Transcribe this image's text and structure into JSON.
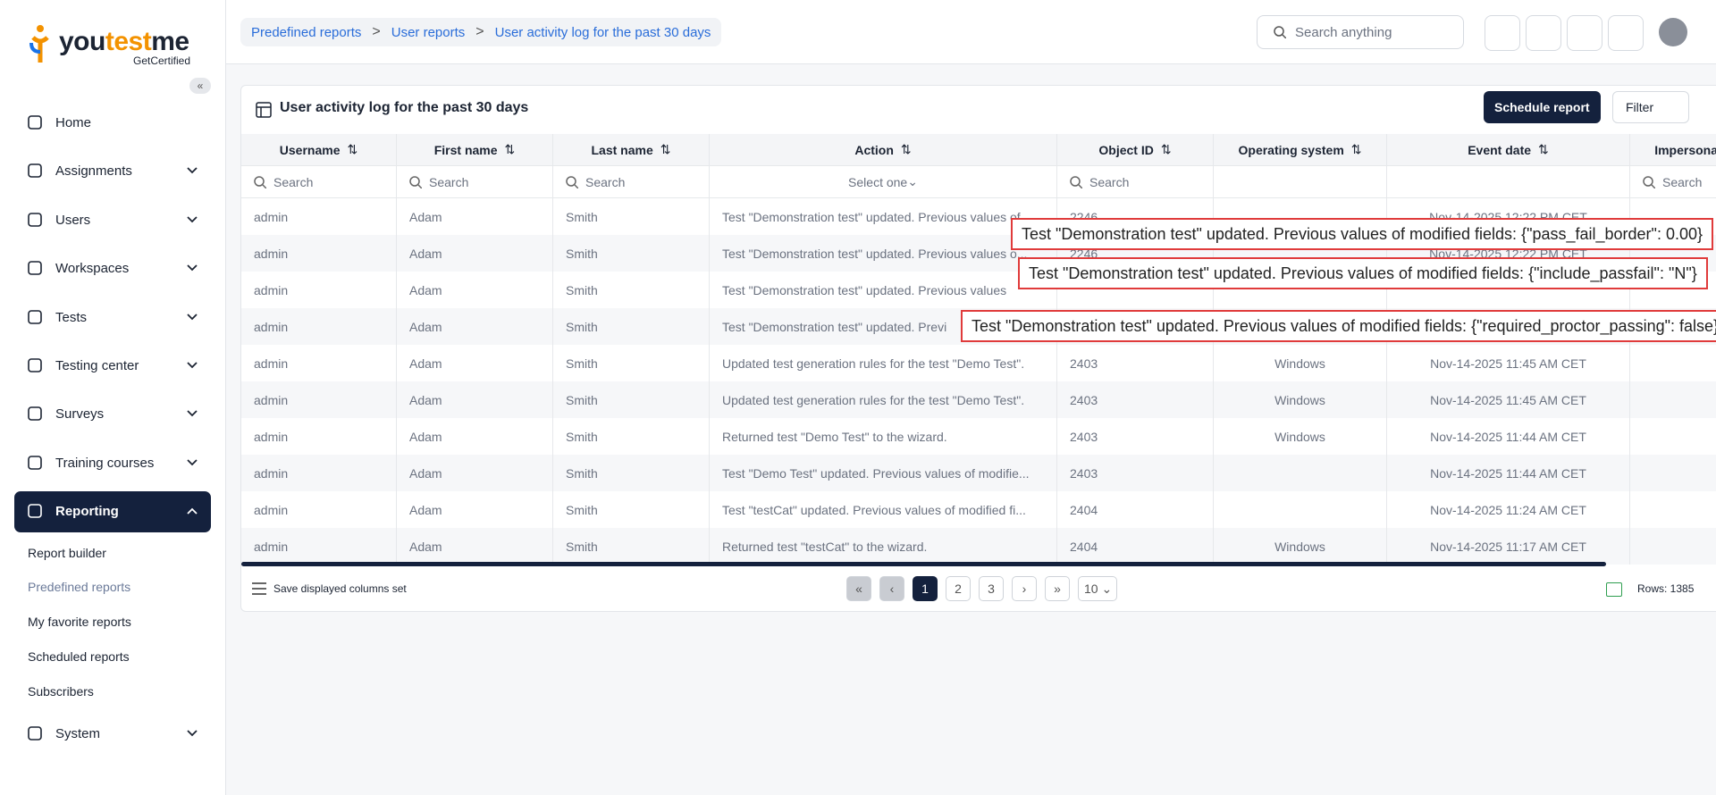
{
  "sidebar": {
    "logo": [
      "you",
      "test",
      "me"
    ],
    "logo_sub": "GetCertified",
    "nav": [
      "Home",
      "Assignments",
      "Users",
      "Workspaces",
      "Tests",
      "Testing center",
      "Surveys",
      "Training courses",
      "Reporting"
    ],
    "reporting_items": [
      "Report builder",
      "Predefined reports",
      "My favorite reports",
      "Scheduled reports",
      "Subscribers"
    ],
    "system": "System"
  },
  "header": {
    "breadcrumbs": [
      "Predefined reports",
      "User reports",
      "User activity log for the past 30 days"
    ],
    "search_placeholder": "Search anything"
  },
  "card": {
    "title": "User activity log for the past 30 days",
    "schedule_button": "Schedule report",
    "filter_button": "Filter"
  },
  "table": {
    "columns": [
      "Username",
      "First name",
      "Last name",
      "Action",
      "Object ID",
      "Operating system",
      "Event date",
      "Impersona"
    ],
    "filters": [
      "Search",
      "Search",
      "Search",
      "Select one",
      "Search",
      null,
      null,
      "Search"
    ],
    "rows": [
      [
        "admin",
        "Adam",
        "Smith",
        "Test \"Demonstration test\" updated. Previous values of...",
        2246,
        null,
        "Nov-14-2025 12:22 PM CET",
        null
      ],
      [
        "admin",
        "Adam",
        "Smith",
        "Test \"Demonstration test\" updated. Previous values o...",
        2246,
        null,
        "Nov-14-2025 12:22 PM CET",
        null
      ],
      [
        "admin",
        "Adam",
        "Smith",
        "Test \"Demonstration test\" updated. Previous values",
        null,
        null,
        null,
        null
      ],
      [
        "admin",
        "Adam",
        "Smith",
        "Test \"Demonstration test\" updated. Previ",
        null,
        null,
        null,
        null
      ],
      [
        "admin",
        "Adam",
        "Smith",
        "Updated test generation rules for the test \"Demo Test\".",
        2403,
        "Windows",
        "Nov-14-2025 11:45 AM CET",
        null
      ],
      [
        "admin",
        "Adam",
        "Smith",
        "Updated test generation rules for the test \"Demo Test\".",
        2403,
        "Windows",
        "Nov-14-2025 11:45 AM CET",
        null
      ],
      [
        "admin",
        "Adam",
        "Smith",
        "Returned test \"Demo Test\" to the wizard.",
        2403,
        "Windows",
        "Nov-14-2025 11:44 AM CET",
        null
      ],
      [
        "admin",
        "Adam",
        "Smith",
        "Test \"Demo Test\" updated. Previous values of modifie...",
        2403,
        null,
        "Nov-14-2025 11:44 AM CET",
        null
      ],
      [
        "admin",
        "Adam",
        "Smith",
        "Test \"testCat\" updated. Previous values of modified fi...",
        2404,
        null,
        "Nov-14-2025 11:24 AM CET",
        null
      ],
      [
        "admin",
        "Adam",
        "Smith",
        "Returned test \"testCat\" to the wizard.",
        2404,
        "Windows",
        "Nov-14-2025 11:17 AM CET",
        null
      ]
    ]
  },
  "tooltips": [
    "Test \"Demonstration test\" updated. Previous values of modified fields: {\"pass_fail_border\": 0.00}",
    "Test \"Demonstration test\" updated. Previous values of modified fields: {\"include_passfail\": \"N\"}",
    "Test \"Demonstration test\" updated. Previous values of modified fields: {\"required_proctor_passing\": false}"
  ],
  "footer": {
    "save_columns": "Save displayed columns set",
    "pages": [
      1,
      2,
      3
    ],
    "page_size": 10,
    "rows_count": "Rows: 1385"
  }
}
